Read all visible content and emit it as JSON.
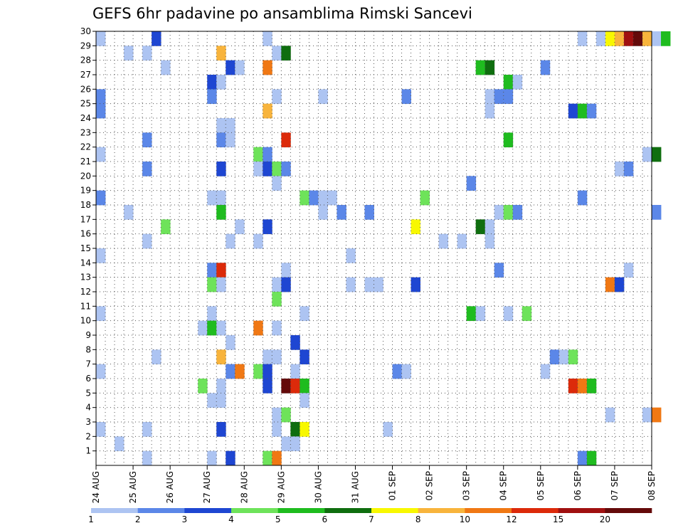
{
  "chart_data": {
    "type": "heatmap",
    "title": "GEFS 6hr padavine po ansamblima Rimski Sancevi",
    "x_tick_labels": [
      "24 AUG",
      "25 AUG",
      "26 AUG",
      "27 AUG",
      "28 AUG",
      "29 AUG",
      "30 AUG",
      "31 AUG",
      "01 SEP",
      "02 SEP",
      "03 SEP",
      "04 SEP",
      "05 SEP",
      "06 SEP",
      "07 SEP",
      "08 SEP"
    ],
    "y_tick_labels": [
      "1",
      "2",
      "3",
      "4",
      "5",
      "6",
      "7",
      "8",
      "9",
      "10",
      "11",
      "12",
      "13",
      "14",
      "15",
      "16",
      "17",
      "18",
      "19",
      "20",
      "21",
      "22",
      "23",
      "24",
      "25",
      "26",
      "27",
      "28",
      "29",
      "30"
    ],
    "x_step_hours": 6,
    "y_range": [
      0,
      30
    ],
    "grid": true,
    "colorbar": {
      "labels": [
        "1",
        "2",
        "3",
        "4",
        "5",
        "6",
        "7",
        "8",
        "10",
        "12",
        "15",
        "20"
      ],
      "colors": [
        "#adc4f2",
        "#5b87e8",
        "#1e46d2",
        "#6ee35a",
        "#1fbc1f",
        "#0f6e0f",
        "#f8f800",
        "#f8b43c",
        "#f07814",
        "#dc2a0a",
        "#a01010",
        "#640a0a"
      ]
    },
    "cells_format": "[time index (6-hour steps from 24 AUG 00Z), member, colour bin index]",
    "cells": [
      [
        0,
        30,
        0
      ],
      [
        6,
        30,
        2
      ],
      [
        18,
        30,
        0
      ],
      [
        52,
        30,
        0
      ],
      [
        54,
        30,
        0
      ],
      [
        55,
        30,
        6
      ],
      [
        56,
        30,
        7
      ],
      [
        57,
        30,
        10
      ],
      [
        58,
        30,
        11
      ],
      [
        59,
        30,
        7
      ],
      [
        60,
        30,
        0
      ],
      [
        61,
        30,
        4
      ],
      [
        3,
        29,
        0
      ],
      [
        5,
        29,
        0
      ],
      [
        13,
        29,
        7
      ],
      [
        19,
        29,
        0
      ],
      [
        20,
        29,
        5
      ],
      [
        7,
        28,
        0
      ],
      [
        14,
        28,
        2
      ],
      [
        15,
        28,
        0
      ],
      [
        18,
        28,
        8
      ],
      [
        41,
        28,
        4
      ],
      [
        42,
        28,
        5
      ],
      [
        48,
        28,
        1
      ],
      [
        12,
        27,
        2
      ],
      [
        13,
        27,
        0
      ],
      [
        44,
        27,
        4
      ],
      [
        45,
        27,
        0
      ],
      [
        0,
        26,
        1
      ],
      [
        12,
        26,
        1
      ],
      [
        19,
        26,
        0
      ],
      [
        24,
        26,
        0
      ],
      [
        33,
        26,
        1
      ],
      [
        42,
        26,
        0
      ],
      [
        43,
        26,
        1
      ],
      [
        44,
        26,
        1
      ],
      [
        0,
        25,
        1
      ],
      [
        18,
        25,
        7
      ],
      [
        42,
        25,
        0
      ],
      [
        51,
        25,
        2
      ],
      [
        52,
        25,
        4
      ],
      [
        53,
        25,
        1
      ],
      [
        13,
        24,
        0
      ],
      [
        14,
        24,
        0
      ],
      [
        5,
        23,
        1
      ],
      [
        13,
        23,
        1
      ],
      [
        14,
        23,
        0
      ],
      [
        20,
        23,
        9
      ],
      [
        44,
        23,
        4
      ],
      [
        0,
        22,
        0
      ],
      [
        17,
        22,
        3
      ],
      [
        18,
        22,
        1
      ],
      [
        59,
        22,
        0
      ],
      [
        60,
        22,
        5
      ],
      [
        5,
        21,
        1
      ],
      [
        13,
        21,
        2
      ],
      [
        17,
        21,
        0
      ],
      [
        18,
        21,
        2
      ],
      [
        19,
        21,
        3
      ],
      [
        20,
        21,
        1
      ],
      [
        56,
        21,
        0
      ],
      [
        57,
        21,
        1
      ],
      [
        19,
        20,
        0
      ],
      [
        40,
        20,
        1
      ],
      [
        0,
        19,
        1
      ],
      [
        12,
        19,
        0
      ],
      [
        13,
        19,
        0
      ],
      [
        22,
        19,
        3
      ],
      [
        23,
        19,
        1
      ],
      [
        24,
        19,
        0
      ],
      [
        25,
        19,
        0
      ],
      [
        35,
        19,
        3
      ],
      [
        52,
        19,
        1
      ],
      [
        3,
        18,
        0
      ],
      [
        13,
        18,
        4
      ],
      [
        24,
        18,
        0
      ],
      [
        26,
        18,
        1
      ],
      [
        29,
        18,
        1
      ],
      [
        43,
        18,
        0
      ],
      [
        44,
        18,
        3
      ],
      [
        45,
        18,
        1
      ],
      [
        60,
        18,
        1
      ],
      [
        7,
        17,
        3
      ],
      [
        15,
        17,
        0
      ],
      [
        18,
        17,
        2
      ],
      [
        34,
        17,
        6
      ],
      [
        41,
        17,
        5
      ],
      [
        42,
        17,
        0
      ],
      [
        5,
        16,
        0
      ],
      [
        14,
        16,
        0
      ],
      [
        17,
        16,
        0
      ],
      [
        37,
        16,
        0
      ],
      [
        39,
        16,
        0
      ],
      [
        42,
        16,
        0
      ],
      [
        0,
        15,
        0
      ],
      [
        27,
        15,
        0
      ],
      [
        12,
        14,
        1
      ],
      [
        13,
        14,
        9
      ],
      [
        20,
        14,
        0
      ],
      [
        43,
        14,
        1
      ],
      [
        57,
        14,
        0
      ],
      [
        12,
        13,
        3
      ],
      [
        13,
        13,
        0
      ],
      [
        19,
        13,
        0
      ],
      [
        20,
        13,
        2
      ],
      [
        27,
        13,
        0
      ],
      [
        29,
        13,
        0
      ],
      [
        30,
        13,
        0
      ],
      [
        34,
        13,
        2
      ],
      [
        55,
        13,
        8
      ],
      [
        56,
        13,
        2
      ],
      [
        19,
        12,
        3
      ],
      [
        0,
        11,
        0
      ],
      [
        12,
        11,
        0
      ],
      [
        22,
        11,
        0
      ],
      [
        40,
        11,
        4
      ],
      [
        41,
        11,
        0
      ],
      [
        44,
        11,
        0
      ],
      [
        46,
        11,
        3
      ],
      [
        11,
        10,
        0
      ],
      [
        12,
        10,
        4
      ],
      [
        13,
        10,
        0
      ],
      [
        17,
        10,
        8
      ],
      [
        19,
        10,
        0
      ],
      [
        14,
        9,
        0
      ],
      [
        21,
        9,
        2
      ],
      [
        6,
        8,
        0
      ],
      [
        13,
        8,
        7
      ],
      [
        18,
        8,
        0
      ],
      [
        19,
        8,
        0
      ],
      [
        22,
        8,
        2
      ],
      [
        49,
        8,
        1
      ],
      [
        50,
        8,
        0
      ],
      [
        51,
        8,
        3
      ],
      [
        0,
        7,
        0
      ],
      [
        14,
        7,
        1
      ],
      [
        15,
        7,
        8
      ],
      [
        17,
        7,
        3
      ],
      [
        18,
        7,
        2
      ],
      [
        21,
        7,
        0
      ],
      [
        32,
        7,
        1
      ],
      [
        33,
        7,
        0
      ],
      [
        48,
        7,
        0
      ],
      [
        11,
        6,
        3
      ],
      [
        13,
        6,
        0
      ],
      [
        18,
        6,
        2
      ],
      [
        20,
        6,
        11
      ],
      [
        21,
        6,
        9
      ],
      [
        22,
        6,
        4
      ],
      [
        51,
        6,
        9
      ],
      [
        52,
        6,
        8
      ],
      [
        53,
        6,
        4
      ],
      [
        12,
        5,
        0
      ],
      [
        13,
        5,
        0
      ],
      [
        22,
        5,
        0
      ],
      [
        19,
        4,
        0
      ],
      [
        20,
        4,
        3
      ],
      [
        55,
        4,
        0
      ],
      [
        59,
        4,
        0
      ],
      [
        60,
        4,
        8
      ],
      [
        0,
        3,
        0
      ],
      [
        5,
        3,
        0
      ],
      [
        13,
        3,
        2
      ],
      [
        19,
        3,
        0
      ],
      [
        21,
        3,
        5
      ],
      [
        22,
        3,
        6
      ],
      [
        31,
        3,
        0
      ],
      [
        2,
        2,
        0
      ],
      [
        20,
        2,
        0
      ],
      [
        21,
        2,
        0
      ],
      [
        5,
        1,
        0
      ],
      [
        12,
        1,
        0
      ],
      [
        14,
        1,
        2
      ],
      [
        18,
        1,
        3
      ],
      [
        19,
        1,
        8
      ],
      [
        52,
        1,
        1
      ],
      [
        53,
        1,
        4
      ]
    ]
  }
}
